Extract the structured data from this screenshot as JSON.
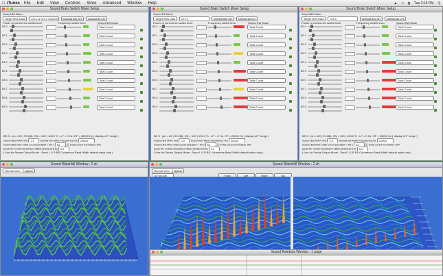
{
  "menubar": {
    "app": "iTunes",
    "items": [
      "File",
      "Edit",
      "View",
      "Controls",
      "Store",
      "Advanced",
      "Window",
      "Help"
    ],
    "clock": "Tue 2:19 PM"
  },
  "mixer": {
    "title": "Sound Brain Switch Mixer Setup",
    "section_label": "Sound BS Mixer",
    "target_label": "Target BVA Data",
    "default_btn": "Default this CH",
    "default_all_btn": "Default all CH",
    "col_power": "Power or coherence switch level",
    "col_freq": "Frequency switch level",
    "col_mode": "Sound SW Mode",
    "mode_value": "Total Count",
    "bottom_line1": "BS 3 : (cn = 80 ) 99.286, HN = 100 ) 100.0 % , LF = 0 Hz, HF = 20000 Hz ( display of F range )",
    "max_level_label": "Sound BS MAX m/s",
    "max_level_val": "2.0",
    "max_freq_label": "Sound BS MAX Frequency HZ",
    "max_freq_val": "20000",
    "total_label": "Sound BS Max Total count (Default = 64 )",
    "total_val": "64",
    "coh_label": "peak AV CoherenceBand offset (Default 5.0)",
    "coh_val": "5.0",
    "normalize_label": "Total count normalize SW",
    "note": "( Use for Sense Output Mode : Send L & R BS Coherence Band Width default value only )",
    "windows": [
      {
        "channel": "CH-1 & CH-2 Coherence"
      },
      {
        "channel": "CH-1"
      },
      {
        "channel": "CH-3"
      }
    ]
  },
  "waterfall_left": {
    "title": "Sound Waterfall Window : 2 ch",
    "mode": "Normal View",
    "option_btn": "Option"
  },
  "waterfall_main": {
    "title": "Sound Waterfall Window : 2 ch",
    "mode": "Normal View",
    "option_btn": "Option",
    "buttons": [
      "Front",
      "Left",
      "Right",
      "Top"
    ],
    "view_select": "x8 Smooth"
  },
  "rainbow": {
    "title": "Sound Rainbow Window : 1 page"
  },
  "colors": {
    "desktop": "#3a6fd1",
    "red": "#e63a3a",
    "green": "#7cc84a",
    "yellow": "#e6d33a",
    "plot_bg": "#3a6fd1"
  }
}
